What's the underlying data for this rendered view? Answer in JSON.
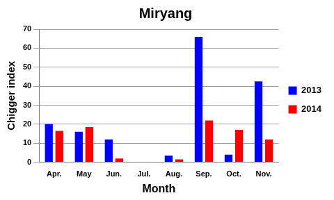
{
  "chart_data": {
    "type": "bar",
    "title": "Miryang",
    "x_label": "Month",
    "y_label": "Chigger index",
    "categories": [
      "Apr.",
      "May",
      "Jun.",
      "Jul.",
      "Aug.",
      "Sep.",
      "Oct.",
      "Nov."
    ],
    "series": [
      {
        "name": "2013",
        "color": "#0000ff",
        "values": [
          20,
          16,
          12,
          0,
          3.5,
          66,
          4,
          42.5
        ]
      },
      {
        "name": "2014",
        "color": "#ff0000",
        "values": [
          16.5,
          18.5,
          2,
          0,
          1.5,
          22,
          17,
          12
        ]
      }
    ],
    "ylim": [
      0,
      70
    ],
    "yticks": [
      0,
      10,
      20,
      30,
      40,
      50,
      60,
      70
    ],
    "grid": true,
    "legend": "right"
  }
}
